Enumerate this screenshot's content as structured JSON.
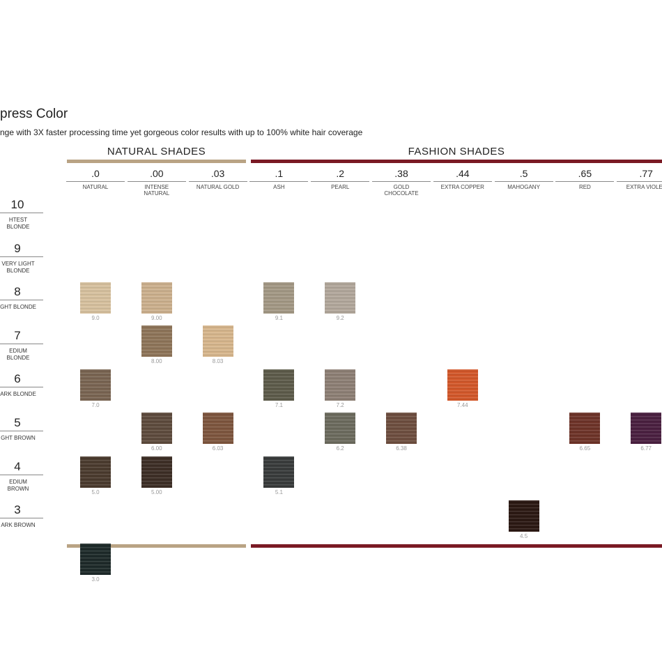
{
  "header": {
    "title": "press Color",
    "subtitle": "nge with 3X faster processing time yet gorgeous color results with up to 100% white hair coverage"
  },
  "groups": [
    {
      "label": "NATURAL SHADES",
      "color": "#b9a384"
    },
    {
      "label": "FASHION SHADES",
      "color": "#7a1a24"
    }
  ],
  "columns": [
    {
      "code": ".0",
      "name": "NATURAL"
    },
    {
      "code": ".00",
      "name": "INTENSE NATURAL"
    },
    {
      "code": ".03",
      "name": "NATURAL GOLD"
    },
    {
      "code": ".1",
      "name": "ASH"
    },
    {
      "code": ".2",
      "name": "PEARL"
    },
    {
      "code": ".38",
      "name": "GOLD CHOCOLATE"
    },
    {
      "code": ".44",
      "name": "EXTRA COPPER"
    },
    {
      "code": ".5",
      "name": "MAHOGANY"
    },
    {
      "code": ".65",
      "name": "RED"
    },
    {
      "code": ".77",
      "name": "EXTRA VIOLET"
    }
  ],
  "rows": [
    {
      "level": "10",
      "name": "HTEST BLONDE",
      "cells": [
        null,
        null,
        null,
        null,
        null,
        null,
        null,
        null,
        null,
        null
      ]
    },
    {
      "level": "9",
      "name": "VERY LIGHT BLONDE",
      "cells": [
        {
          "label": "9.0",
          "color": "#d8c29f"
        },
        {
          "label": "9.00",
          "color": "#cdb18e"
        },
        null,
        {
          "label": "9.1",
          "color": "#a49985"
        },
        {
          "label": "9.2",
          "color": "#b3a89c"
        },
        null,
        null,
        null,
        null,
        null
      ]
    },
    {
      "level": "8",
      "name": "GHT BLONDE",
      "cells": [
        null,
        {
          "label": "8.00",
          "color": "#8f7559"
        },
        {
          "label": "8.03",
          "color": "#d8b78d"
        },
        null,
        null,
        null,
        null,
        null,
        null,
        null
      ]
    },
    {
      "level": "7",
      "name": "EDIUM BLONDE",
      "cells": [
        {
          "label": "7.0",
          "color": "#7a6552"
        },
        null,
        null,
        {
          "label": "7.1",
          "color": "#5d5b4a"
        },
        {
          "label": "7.2",
          "color": "#8e8075"
        },
        null,
        {
          "label": "7.44",
          "color": "#d4582a"
        },
        null,
        null,
        null
      ]
    },
    {
      "level": "6",
      "name": "ARK BLONDE",
      "cells": [
        null,
        {
          "label": "6.00",
          "color": "#5e4b3d"
        },
        {
          "label": "6.03",
          "color": "#7e563e"
        },
        null,
        {
          "label": "6.2",
          "color": "#6c6b5e"
        },
        {
          "label": "6.38",
          "color": "#6e4e3f"
        },
        null,
        null,
        {
          "label": "6.65",
          "color": "#6e3328"
        },
        {
          "label": "6.77",
          "color": "#4a1f40"
        }
      ]
    },
    {
      "level": "5",
      "name": "GHT BROWN",
      "cells": [
        {
          "label": "5.0",
          "color": "#4b3b2e"
        },
        {
          "label": "5.00",
          "color": "#3d2e25"
        },
        null,
        {
          "label": "5.1",
          "color": "#383b3b"
        },
        null,
        null,
        null,
        null,
        null,
        null
      ]
    },
    {
      "level": "4",
      "name": "EDIUM BROWN",
      "cells": [
        null,
        null,
        null,
        null,
        null,
        null,
        null,
        {
          "label": "4.5",
          "color": "#2b1812"
        },
        null,
        null
      ]
    },
    {
      "level": "3",
      "name": "ARK BROWN",
      "cells": [
        {
          "label": "3.0",
          "color": "#1d2a29"
        },
        null,
        null,
        null,
        null,
        null,
        null,
        null,
        null,
        null
      ]
    }
  ]
}
